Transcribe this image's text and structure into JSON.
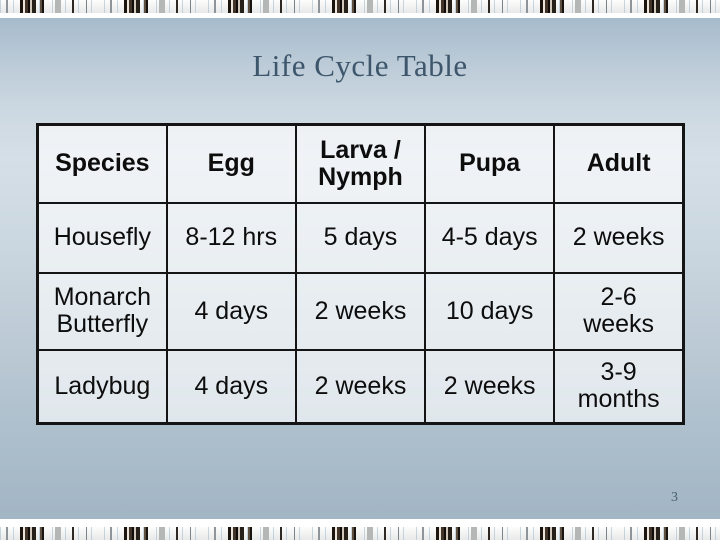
{
  "slide": {
    "title": "Life Cycle Table",
    "page_number": "3"
  },
  "table": {
    "columns": [
      "Species",
      "Egg",
      "Larva /\nNymph",
      "Pupa",
      "Adult"
    ],
    "rows": [
      [
        "Housefly",
        "8-12 hrs",
        "5 days",
        "4-5 days",
        "2 weeks"
      ],
      [
        "Monarch\nButterfly",
        "4 days",
        "2 weeks",
        "10 days",
        "2-6\nweeks"
      ],
      [
        "Ladybug",
        "4 days",
        "2 weeks",
        "2 weeks",
        "3-9\nmonths"
      ]
    ]
  },
  "colors": {
    "title_text": "#3d566b",
    "table_border": "#141414",
    "cell_text": "#0d0d0d",
    "cell_fill": "rgba(255,255,255,0.62)",
    "slide_gradient_top": "#a6bbcc",
    "slide_gradient_light": "#d5dfe7",
    "slide_gradient_bottom": "#a2b5c4",
    "page_number_text": "#47616f"
  }
}
